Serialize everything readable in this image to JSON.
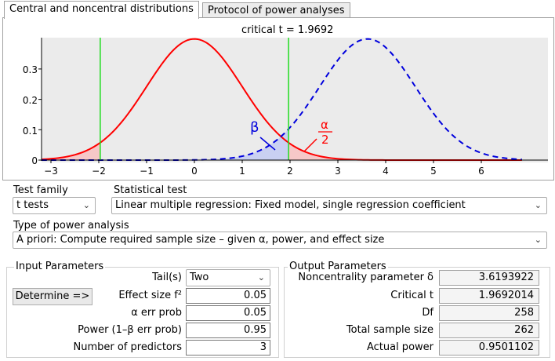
{
  "tabs": [
    {
      "label": "Central and noncentral distributions"
    },
    {
      "label": "Protocol of power analyses"
    }
  ],
  "plot": {
    "critical_label": "critical t =  1.9692",
    "y_ticks": [
      "0.3",
      "0.2",
      "0.1",
      "0"
    ],
    "x_ticks": [
      "−3",
      "−2",
      "−1",
      "0",
      "1",
      "2",
      "3",
      "4",
      "5",
      "6"
    ],
    "beta_symbol": "β",
    "alpha_numerator": "α",
    "alpha_denominator": "2",
    "colors": {
      "central": "#ff0000",
      "noncentral": "#0000dd",
      "critical_line": "#22dd22",
      "beta_fill": "#c9d0f2",
      "alpha_fill": "#f6c8c8",
      "plot_bg": "#ebebeb"
    }
  },
  "test_family": {
    "label": "Test family",
    "value": "t tests"
  },
  "statistical_test": {
    "label": "Statistical test",
    "value": "Linear multiple regression: Fixed model, single regression coefficient"
  },
  "analysis_type": {
    "label": "Type of power analysis",
    "value": "A priori: Compute required sample size – given α, power, and effect size"
  },
  "input": {
    "title": "Input Parameters",
    "determine_button": "Determine =>",
    "tails_label": "Tail(s)",
    "tails_value": "Two",
    "effect_label": "Effect size f²",
    "effect_value": "0.05",
    "alpha_label": "α err prob",
    "alpha_value": "0.05",
    "power_label": "Power (1–β err prob)",
    "power_value": "0.95",
    "predictors_label": "Number of predictors",
    "predictors_value": "3"
  },
  "output": {
    "title": "Output Parameters",
    "ncp_label": "Noncentrality parameter δ",
    "ncp_value": "3.6193922",
    "critical_label": "Critical t",
    "critical_value": "1.9692014",
    "df_label": "Df",
    "df_value": "258",
    "n_label": "Total sample size",
    "n_value": "262",
    "power_label": "Actual power",
    "power_value": "0.9501102"
  }
}
